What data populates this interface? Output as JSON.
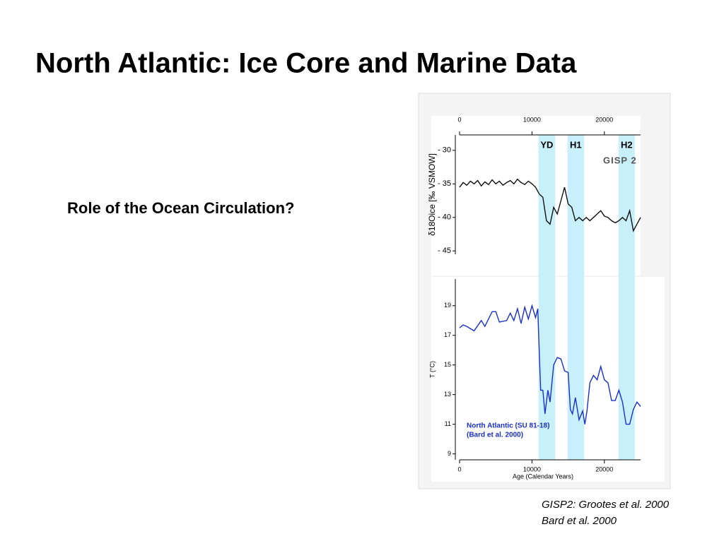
{
  "title": "North Atlantic: Ice Core and Marine Data",
  "subtitle": "Role of the Ocean Circulation?",
  "citations": [
    "GISP2: Grootes et al. 2000",
    "Bard et al. 2000"
  ],
  "bands": [
    {
      "label": "YD",
      "range": [
        10900,
        13200
      ],
      "color": "#c8f0fa"
    },
    {
      "label": "H1",
      "range": [
        14900,
        17200
      ],
      "color": "#c8f0fa"
    },
    {
      "label": "H2",
      "range": [
        21950,
        24200
      ],
      "color": "#c8f0fa"
    }
  ],
  "chart_data": [
    {
      "type": "line",
      "annotation": "GISP 2",
      "ylabel": "δ18Oice [‰ VSMOW]",
      "xaxis_position": "top",
      "xlim": [
        0,
        25000
      ],
      "xticks": [
        0,
        10000,
        20000
      ],
      "ylim": [
        -45.5,
        -27.7
      ],
      "yticks": [
        {
          "value": -30,
          "label": "- 30"
        },
        {
          "value": -35,
          "label": "- 35"
        },
        {
          "value": -40,
          "label": "- 40"
        },
        {
          "value": -45,
          "label": "- 45"
        }
      ],
      "x": [
        0,
        500,
        1000,
        1500,
        2000,
        2500,
        3000,
        3500,
        4000,
        4500,
        5000,
        5500,
        6000,
        6500,
        7000,
        7500,
        8000,
        8500,
        9000,
        9500,
        10000,
        10500,
        11000,
        11500,
        12000,
        12500,
        13000,
        13500,
        14000,
        14500,
        15000,
        15500,
        16000,
        16500,
        17000,
        17500,
        18000,
        18500,
        19000,
        19500,
        20000,
        20500,
        21000,
        21500,
        22000,
        22500,
        23000,
        23500,
        24000,
        24500,
        25000
      ],
      "series": [
        {
          "color": "#111111",
          "values": [
            -35.5,
            -34.8,
            -35.2,
            -34.6,
            -35.0,
            -34.5,
            -35.3,
            -34.7,
            -35.1,
            -34.4,
            -35.0,
            -34.6,
            -35.2,
            -34.8,
            -34.5,
            -35.0,
            -34.3,
            -34.8,
            -35.1,
            -34.6,
            -35.0,
            -35.5,
            -36.5,
            -37.0,
            -40.5,
            -41.0,
            -38.5,
            -39.5,
            -37.5,
            -35.5,
            -38.0,
            -38.5,
            -40.5,
            -40.0,
            -40.5,
            -40.0,
            -40.5,
            -40.0,
            -39.5,
            -39.0,
            -39.8,
            -40.0,
            -40.5,
            -40.8,
            -40.5,
            -40.0,
            -40.5,
            -39.0,
            -42.0,
            -41.0,
            -40.0
          ]
        }
      ]
    },
    {
      "type": "line",
      "annotation": [
        "North Atlantic (SU 81-18)",
        "(Bard et al. 2000)"
      ],
      "ylabel": "T (°C)",
      "xlabel": "Age (Calendar Years)",
      "xaxis_position": "bottom",
      "xlim": [
        0,
        25000
      ],
      "xticks": [
        0,
        10000,
        20000
      ],
      "ylim": [
        8.6,
        20.8
      ],
      "yticks": [
        9,
        11,
        13,
        15,
        17,
        19
      ],
      "x": [
        0,
        500,
        1000,
        2000,
        3000,
        3500,
        4500,
        5000,
        5500,
        6500,
        7000,
        7500,
        8000,
        8500,
        9000,
        9500,
        10000,
        10500,
        10800,
        11000,
        11200,
        11500,
        11800,
        12200,
        12500,
        13000,
        13500,
        14000,
        14500,
        15000,
        15300,
        15600,
        16000,
        16500,
        17000,
        17300,
        17600,
        18000,
        18500,
        19000,
        19500,
        20000,
        20500,
        21000,
        21500,
        22000,
        22500,
        23000,
        23500,
        24000,
        24500,
        25000
      ],
      "series": [
        {
          "color": "#1a2fd0",
          "values": [
            17.5,
            17.7,
            17.6,
            17.3,
            18.0,
            17.6,
            18.6,
            18.6,
            17.9,
            18.0,
            18.5,
            18.0,
            18.8,
            17.8,
            18.9,
            18.1,
            19.0,
            18.2,
            18.8,
            16.0,
            13.3,
            13.3,
            11.7,
            13.3,
            12.5,
            15.0,
            15.5,
            15.4,
            14.6,
            14.5,
            12.0,
            11.7,
            12.8,
            11.3,
            11.9,
            11.0,
            11.9,
            13.8,
            14.3,
            14.0,
            14.9,
            14.0,
            13.8,
            12.6,
            12.6,
            13.3,
            12.5,
            11.0,
            11.0,
            12.0,
            12.5,
            12.2
          ]
        }
      ]
    }
  ]
}
